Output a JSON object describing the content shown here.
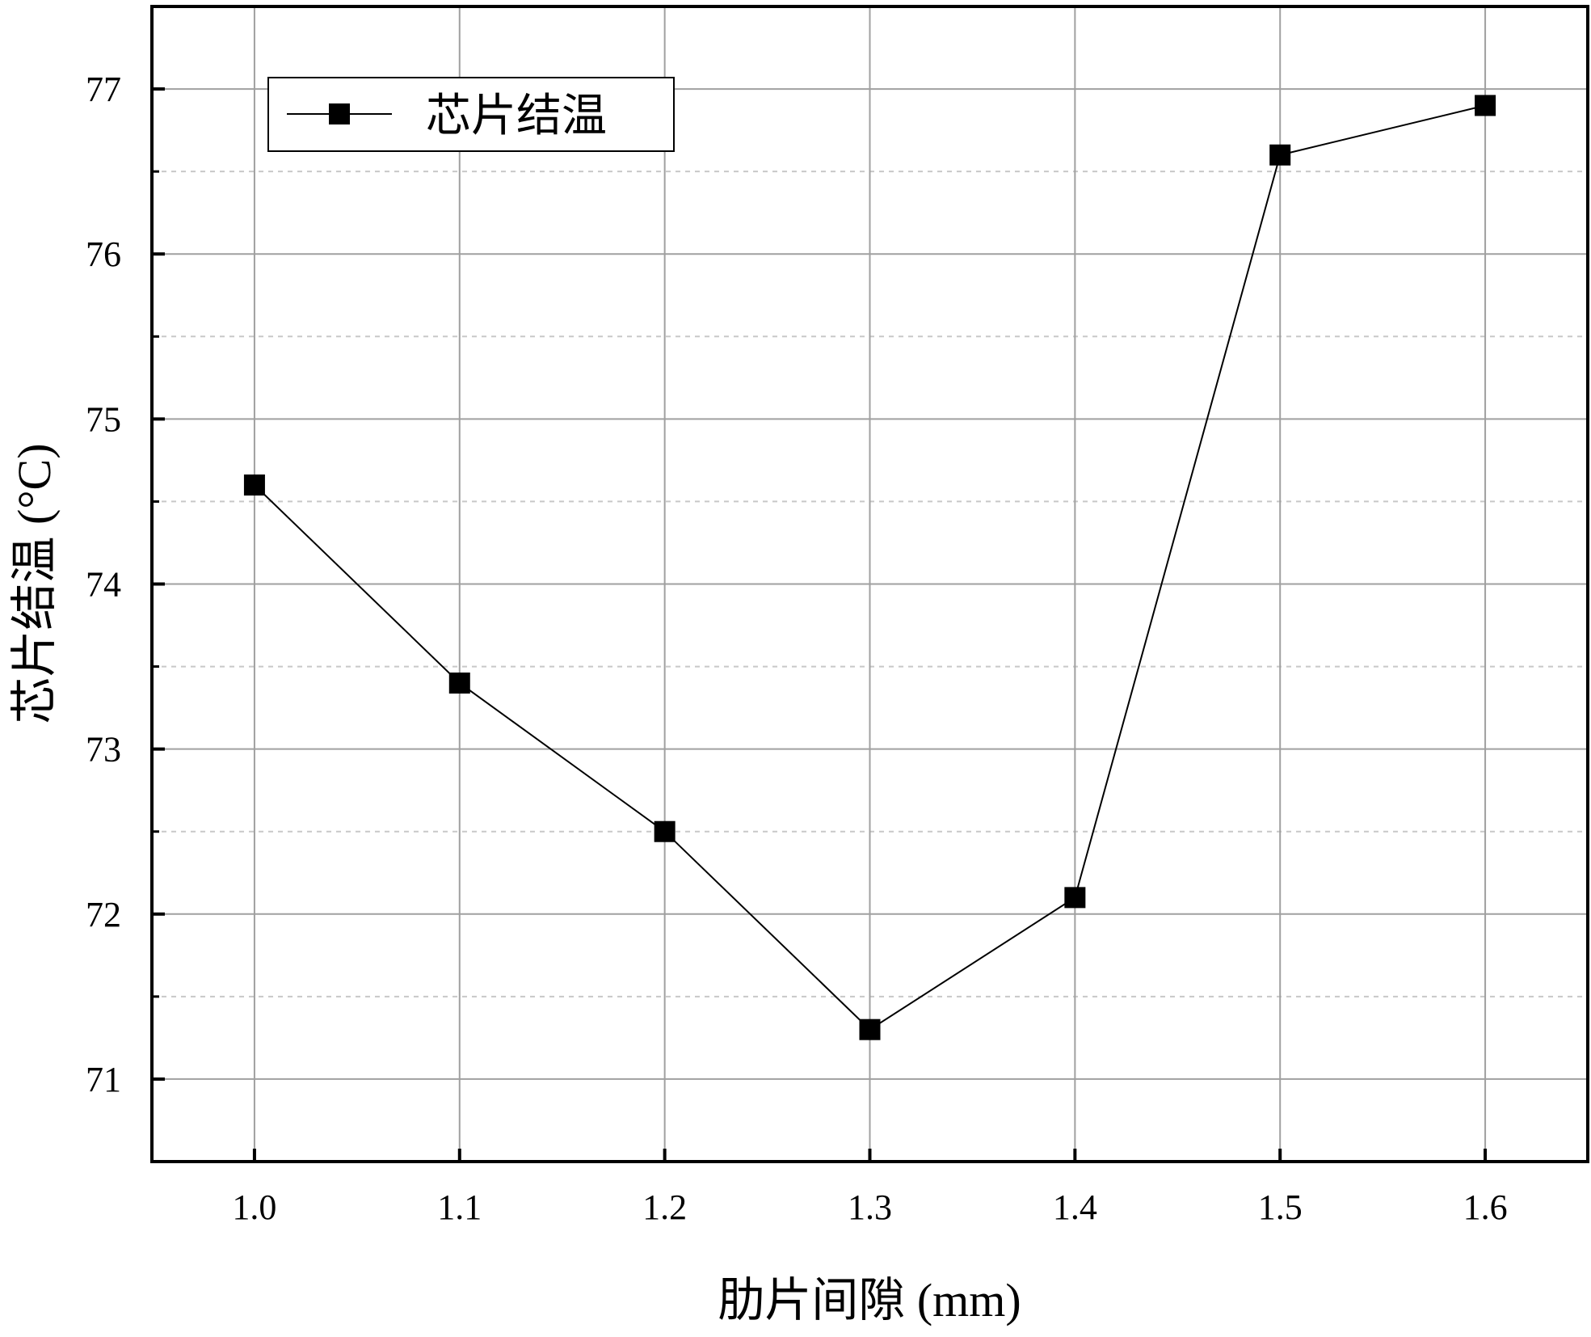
{
  "chart_data": {
    "type": "line",
    "x": [
      1.0,
      1.1,
      1.2,
      1.3,
      1.4,
      1.5,
      1.6
    ],
    "x_tick_labels": [
      "1.0",
      "1.1",
      "1.2",
      "1.3",
      "1.4",
      "1.5",
      "1.6"
    ],
    "y_tick_labels": [
      "71",
      "72",
      "73",
      "74",
      "75",
      "76",
      "77"
    ],
    "series": [
      {
        "name": "芯片结温",
        "x": [
          1.0,
          1.1,
          1.2,
          1.3,
          1.4,
          1.5,
          1.6
        ],
        "values": [
          74.6,
          73.4,
          72.5,
          71.3,
          72.1,
          76.6,
          76.9
        ],
        "color": "#000000",
        "marker": "square"
      }
    ],
    "xlabel": "肋片间隙 (mm)",
    "ylabel": "芯片结温 (°C)",
    "xlim": [
      0.95,
      1.65
    ],
    "ylim": [
      70.5,
      77.5
    ],
    "x_major_ticks": [
      1.0,
      1.1,
      1.2,
      1.3,
      1.4,
      1.5,
      1.6
    ],
    "y_major_ticks": [
      71,
      72,
      73,
      74,
      75,
      76,
      77
    ],
    "y_minor_ticks": [
      70.5,
      71.5,
      72.5,
      73.5,
      74.5,
      75.5,
      76.5,
      77.5
    ],
    "grid": true,
    "minor_grid": "dashed",
    "legend_position": "top-left"
  }
}
